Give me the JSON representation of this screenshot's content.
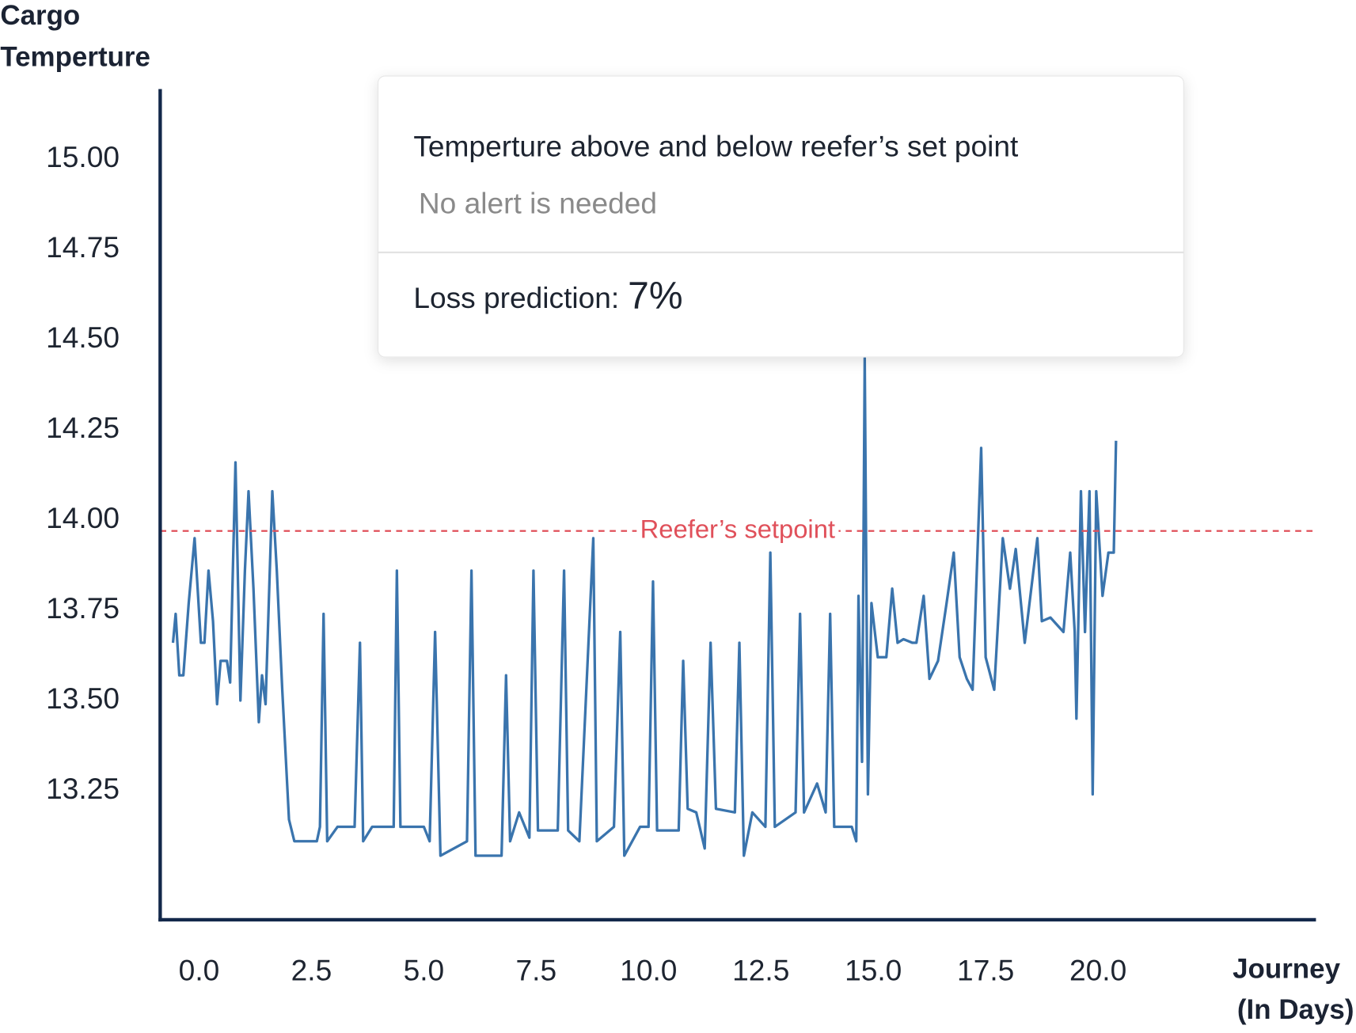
{
  "chart_data": {
    "type": "line",
    "y_label": [
      "Cargo",
      "Temperture"
    ],
    "x_label": [
      "Journey",
      "(In Days)"
    ],
    "color": "#3a74ad",
    "x": [
      -0.58,
      -0.52,
      -0.44,
      -0.35,
      -0.23,
      -0.1,
      0.04,
      0.12,
      0.21,
      0.31,
      0.4,
      0.48,
      0.62,
      0.69,
      0.81,
      0.92,
      1.02,
      1.1,
      1.21,
      1.33,
      1.4,
      1.48,
      1.63,
      1.73,
      1.85,
      2.0,
      2.12,
      2.62,
      2.69,
      2.77,
      2.85,
      3.08,
      3.46,
      3.58,
      3.65,
      3.85,
      4.33,
      4.4,
      4.48,
      5.0,
      5.13,
      5.25,
      5.37,
      5.96,
      6.06,
      6.15,
      6.73,
      6.83,
      6.92,
      7.12,
      7.35,
      7.44,
      7.54,
      7.98,
      8.12,
      8.21,
      8.46,
      8.77,
      8.85,
      9.23,
      9.37,
      9.46,
      9.81,
      10.0,
      10.1,
      10.19,
      10.67,
      10.77,
      10.87,
      11.06,
      11.25,
      11.38,
      11.5,
      11.92,
      12.02,
      12.12,
      12.31,
      12.6,
      12.71,
      12.81,
      13.27,
      13.37,
      13.46,
      13.75,
      13.94,
      14.04,
      14.13,
      14.52,
      14.62,
      14.67,
      14.75,
      14.81,
      14.88,
      14.96,
      15.1,
      15.29,
      15.42,
      15.54,
      15.67,
      15.87,
      15.96,
      16.12,
      16.25,
      16.44,
      16.63,
      16.79,
      16.92,
      17.08,
      17.21,
      17.4,
      17.5,
      17.69,
      17.88,
      18.04,
      18.17,
      18.37,
      18.65,
      18.75,
      18.94,
      19.23,
      19.38,
      19.48,
      19.52,
      19.62,
      19.71,
      19.81,
      19.88,
      19.96,
      20.1,
      20.23,
      20.35,
      20.4
    ],
    "values": [
      13.66,
      13.74,
      13.57,
      13.57,
      13.77,
      13.95,
      13.66,
      13.66,
      13.86,
      13.72,
      13.49,
      13.61,
      13.61,
      13.55,
      14.16,
      13.5,
      13.86,
      14.08,
      13.81,
      13.44,
      13.57,
      13.49,
      14.08,
      13.86,
      13.53,
      13.17,
      13.11,
      13.11,
      13.15,
      13.74,
      13.11,
      13.15,
      13.15,
      13.66,
      13.11,
      13.15,
      13.15,
      13.86,
      13.15,
      13.15,
      13.11,
      13.69,
      13.07,
      13.11,
      13.86,
      13.07,
      13.07,
      13.57,
      13.11,
      13.19,
      13.12,
      13.86,
      13.14,
      13.14,
      13.86,
      13.14,
      13.11,
      13.95,
      13.11,
      13.15,
      13.69,
      13.07,
      13.15,
      13.15,
      13.83,
      13.14,
      13.14,
      13.61,
      13.2,
      13.19,
      13.09,
      13.66,
      13.2,
      13.19,
      13.66,
      13.07,
      13.19,
      13.15,
      13.91,
      13.15,
      13.19,
      13.74,
      13.19,
      13.27,
      13.19,
      13.74,
      13.15,
      13.15,
      13.11,
      13.79,
      13.33,
      14.45,
      13.24,
      13.77,
      13.62,
      13.62,
      13.81,
      13.66,
      13.67,
      13.66,
      13.66,
      13.79,
      13.56,
      13.61,
      13.77,
      13.91,
      13.62,
      13.56,
      13.53,
      14.2,
      13.62,
      13.53,
      13.95,
      13.81,
      13.92,
      13.66,
      13.95,
      13.72,
      13.73,
      13.69,
      13.91,
      13.69,
      13.45,
      14.08,
      13.69,
      14.08,
      13.24,
      14.08,
      13.79,
      13.91,
      13.91,
      14.22
    ],
    "xlim": [
      -0.865,
      24.81
    ],
    "ylim": [
      12.89,
      15.19
    ],
    "xticks": [
      {
        "value": 0,
        "label": "0.0"
      },
      2.5,
      {
        "value": 5,
        "label": "5.0"
      },
      7.5,
      {
        "value": 10,
        "label": "10.0"
      },
      12.5,
      {
        "value": 15,
        "label": "15.0"
      },
      17.5,
      {
        "value": 20,
        "label": "20.0"
      }
    ],
    "yticks": [
      {
        "value": 15,
        "label": "15.00"
      },
      14.75,
      {
        "value": 14.5,
        "label": "14.50"
      },
      14.25,
      {
        "value": 14,
        "label": "14.00"
      },
      13.75,
      {
        "value": 13.5,
        "label": "13.50"
      },
      13.25
    ],
    "setpoint": {
      "value": 13.97,
      "label": "Reefer’s setpoint",
      "color": "#e0505a"
    },
    "tooltip": {
      "title": "Temperture above and below reefer’s set point",
      "subtitle": "No alert is needed",
      "loss_label": "Loss prediction:",
      "loss_value": "7%"
    }
  }
}
